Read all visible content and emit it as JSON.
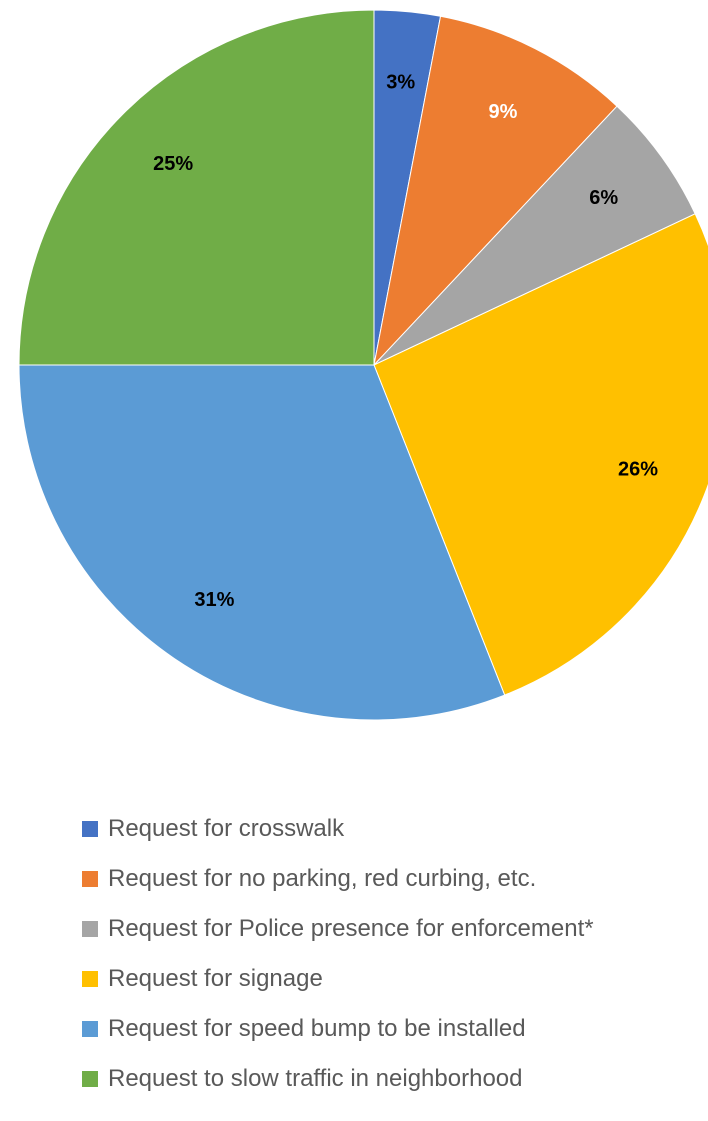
{
  "chart_data": {
    "type": "pie",
    "title": "",
    "start_angle_deg": 0,
    "direction": "clockwise",
    "slices": [
      {
        "label": "Request for crosswalk",
        "value": 3,
        "display": "3%",
        "color": "#4472C4",
        "label_color": "#000000"
      },
      {
        "label": "Request for no parking, red curbing, etc.",
        "value": 9,
        "display": "9%",
        "color": "#ED7D31",
        "label_color": "#FFFFFF"
      },
      {
        "label": "Request for Police presence for enforcement*",
        "value": 6,
        "display": "6%",
        "color": "#A5A5A5",
        "label_color": "#000000"
      },
      {
        "label": "Request for signage",
        "value": 26,
        "display": "26%",
        "color": "#FFC000",
        "label_color": "#000000"
      },
      {
        "label": "Request for speed bump to be installed",
        "value": 31,
        "display": "31%",
        "color": "#5B9BD5",
        "label_color": "#000000"
      },
      {
        "label": "Request to slow traffic in neighborhood",
        "value": 25,
        "display": "25%",
        "color": "#70AD47",
        "label_color": "#000000"
      }
    ],
    "legend_position": "bottom"
  },
  "legend": {
    "items": [
      {
        "label": "Request for crosswalk",
        "color": "#4472C4"
      },
      {
        "label": "Request for no parking, red curbing, etc.",
        "color": "#ED7D31"
      },
      {
        "label": "Request for Police presence for enforcement*",
        "color": "#A5A5A5"
      },
      {
        "label": "Request for signage",
        "color": "#FFC000"
      },
      {
        "label": "Request for speed bump to be installed",
        "color": "#5B9BD5"
      },
      {
        "label": "Request to slow traffic in neighborhood",
        "color": "#70AD47"
      }
    ]
  }
}
